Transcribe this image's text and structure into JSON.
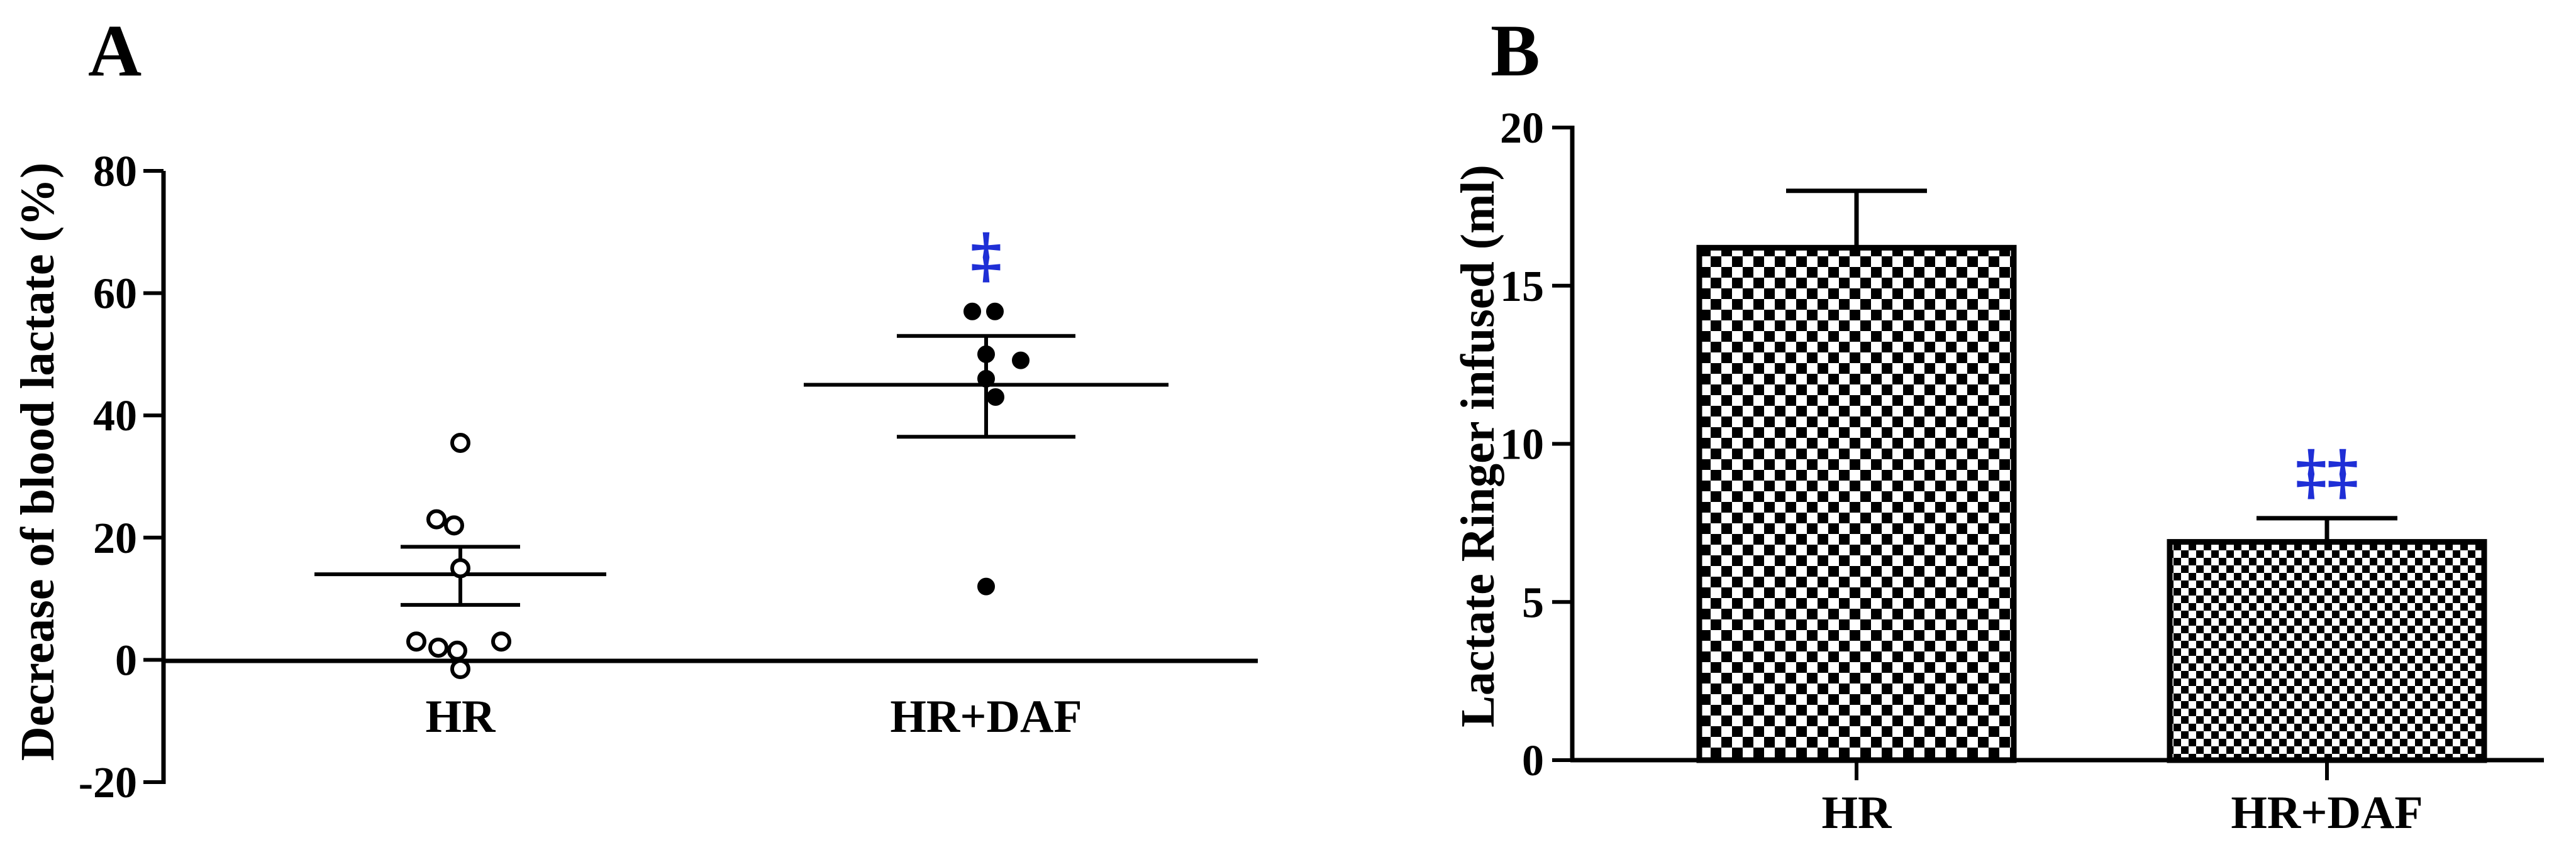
{
  "chart_data": [
    {
      "panel": "A",
      "type": "scatter",
      "ylabel": "Decrease of blood lactate (%)",
      "ylim": [
        -20,
        80
      ],
      "yticks": [
        "80",
        "60",
        "40",
        "20",
        "0",
        "-20"
      ],
      "categories": [
        "HR",
        "HR+DAF"
      ],
      "series": [
        {
          "category": "HR",
          "marker": "open-circle",
          "points": [
            35.5,
            23,
            22,
            15,
            3,
            2,
            1.5,
            3,
            -1.5
          ],
          "mean": 14,
          "sem_upper": 18.5,
          "sem_lower": 9
        },
        {
          "category": "HR+DAF",
          "marker": "filled-circle",
          "points": [
            57,
            57,
            50,
            49,
            46,
            43,
            12
          ],
          "mean": 45,
          "sem_upper": 53,
          "sem_lower": 36.5
        }
      ],
      "annotations": [
        {
          "category": "HR+DAF",
          "text": "‡",
          "color": "#1f2fd6"
        }
      ]
    },
    {
      "panel": "B",
      "type": "bar",
      "ylabel": "Lactate Ringer infused (ml)",
      "ylim": [
        0,
        20
      ],
      "yticks": [
        "20",
        "15",
        "10",
        "5",
        "0"
      ],
      "categories": [
        "HR",
        "HR+DAF"
      ],
      "values": [
        16.2,
        6.9
      ],
      "errors_upper": [
        1.8,
        0.75
      ],
      "bar_patterns": [
        "coarse-checker",
        "fine-checker"
      ],
      "annotations": [
        {
          "category": "HR+DAF",
          "text": "‡‡",
          "color": "#1f2fd6"
        }
      ]
    }
  ]
}
